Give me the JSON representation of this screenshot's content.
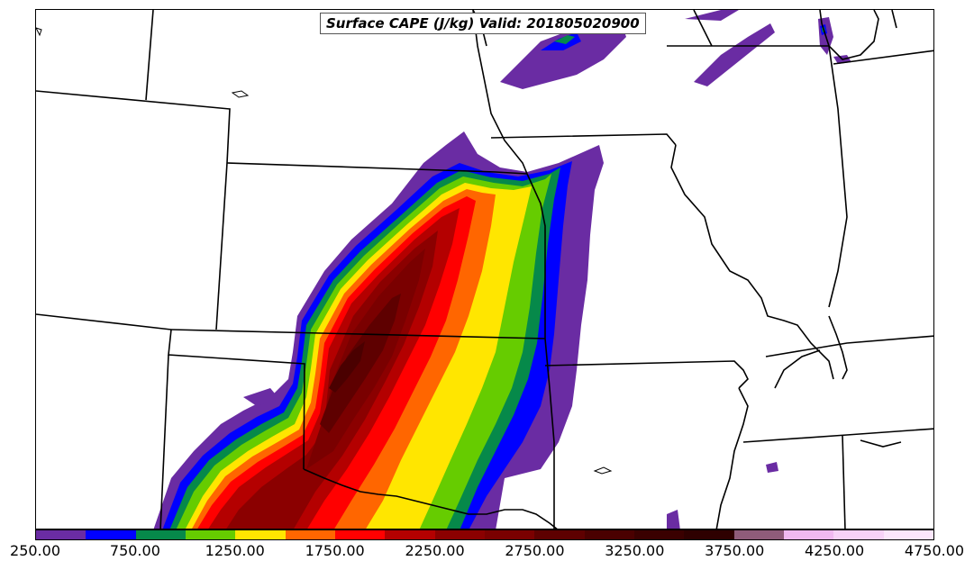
{
  "map": {
    "title": "Surface CAPE (J/kg) Valid: 201805020900"
  },
  "colorbar": {
    "labels": [
      "250.00",
      "750.00",
      "1250.00",
      "1750.00",
      "2250.00",
      "2750.00",
      "3250.00",
      "3750.00",
      "4250.00",
      "4750.00"
    ],
    "colors": [
      "#6a2ca3",
      "#0000ff",
      "#06894a",
      "#66cc00",
      "#ffe600",
      "#ff6600",
      "#ff0000",
      "#b40000",
      "#8b0000",
      "#7a0000",
      "#5e0000",
      "#4a0000",
      "#3a0000",
      "#2e0000",
      "#8f5c7a",
      "#f0b9f0",
      "#f7d2f7",
      "#fbe6fb"
    ]
  },
  "chart_data": {
    "type": "heatmap",
    "title": "Surface CAPE (J/kg) Valid: 201805020900",
    "variable": "Surface CAPE",
    "units": "J/kg",
    "valid_time": "201805020900",
    "colorbar_range": [
      250,
      4750
    ],
    "colorbar_ticks": [
      250,
      750,
      1250,
      1750,
      2250,
      2750,
      3250,
      3750,
      4250,
      4750
    ],
    "colorbar_location": "bottom"
  }
}
